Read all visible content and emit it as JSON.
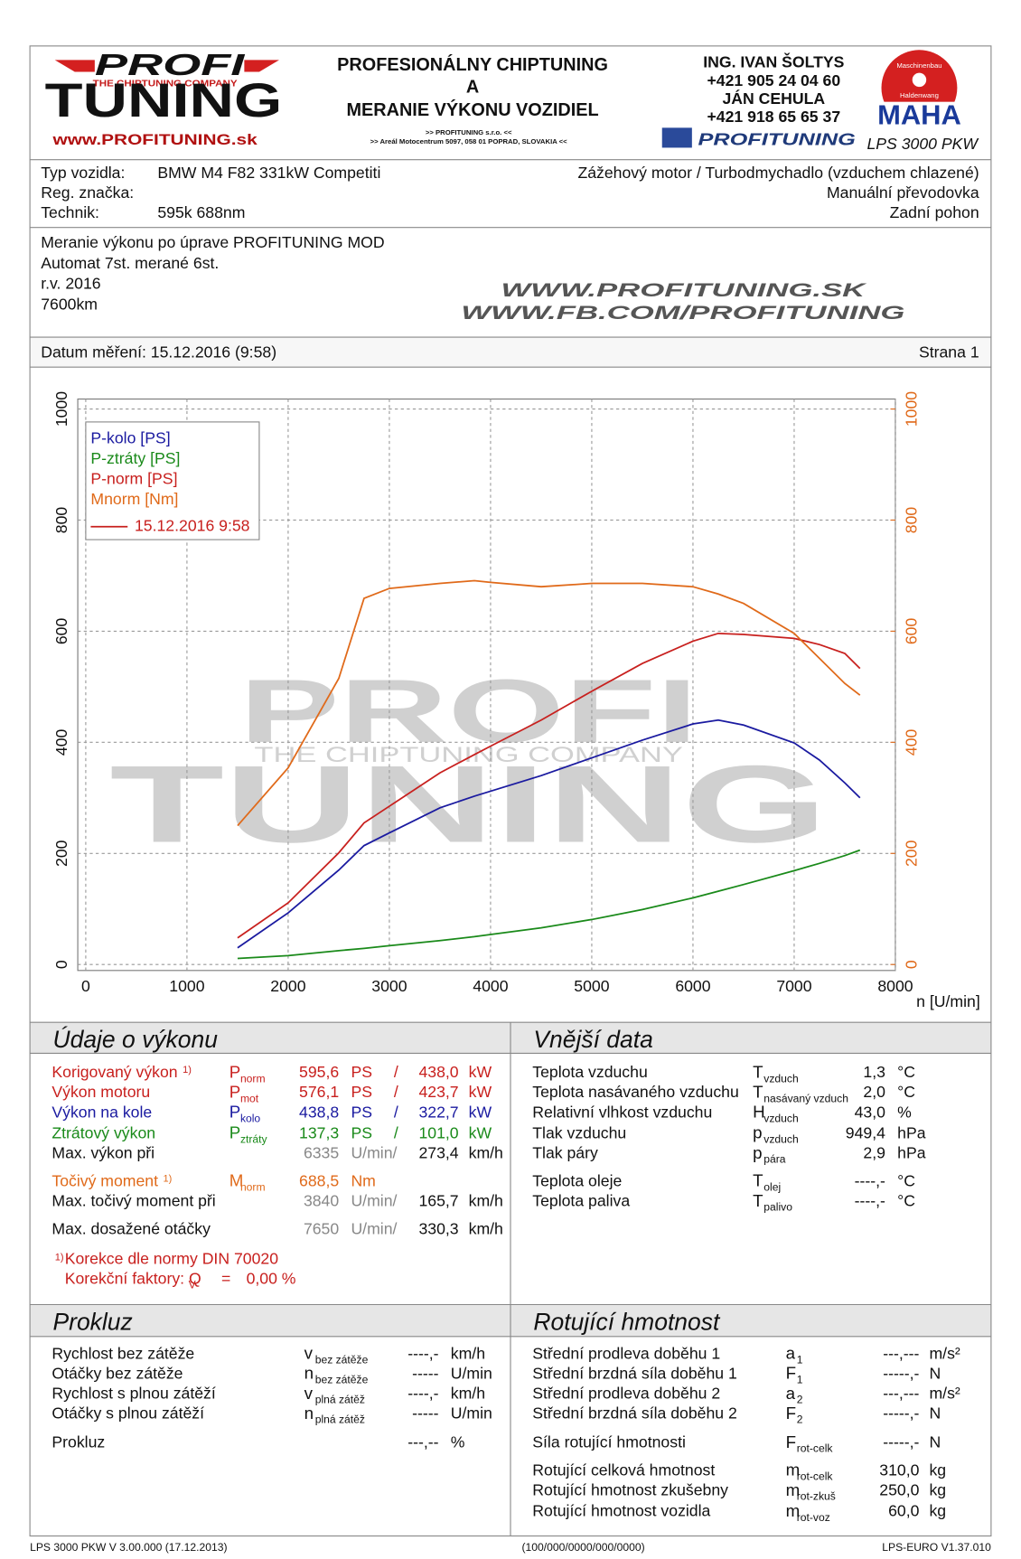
{
  "header": {
    "logo": {
      "profi": "PROFI",
      "tagline": "THE CHIPTUNING COMPANY",
      "tuning": "TUNING",
      "web": "www.PROFITUNING.sk"
    },
    "title": [
      "PROFESIONÁLNY CHIPTUNING",
      "A",
      "MERANIE VÝKONU VOZIDIEL"
    ],
    "address": [
      ">> PROFITUNING s.r.o. <<",
      ">> Areál Motocentrum 5097, 058 01 POPRAD, SLOVAKIA <<"
    ],
    "contacts": [
      "ING. IVAN ŠOLTYS",
      "+421 905 24 04 60",
      "JÁN CEHULA",
      "+421 918 65 65 37"
    ],
    "social": "PROFITUNING",
    "maha": {
      "ring1": "Maschinenbau",
      "ring2": "Haldenwang",
      "brand": "MAHA",
      "model": "LPS 3000 PKW"
    }
  },
  "vehicle": {
    "rows": [
      {
        "label": "Typ vozidla:",
        "value": "BMW M4 F82 331kW Competiti"
      },
      {
        "label": "Reg. značka:"
      },
      {
        "label": "Technik:",
        "value": "595k 688nm"
      }
    ],
    "right": [
      "Zážehový motor / Turbodmychadlo (vzduchem chlazené)",
      "Manuální převodovka",
      "Zadní pohon"
    ]
  },
  "notes": [
    "Meranie výkonu po úprave PROFITUNING MOD",
    "Automat 7st. merané 6st.",
    "r.v. 2016",
    "7600km"
  ],
  "websites": [
    "WWW.PROFITUNING.SK",
    "WWW.FB.COM/PROFITUNING"
  ],
  "date": "Datum měření: 15.12.2016 (9:58)",
  "page": "Strana 1",
  "chart_data": {
    "type": "line",
    "x_label": "n [U/min]",
    "x": [
      1500,
      2000,
      2500,
      2750,
      3000,
      3500,
      3840,
      4000,
      4500,
      5000,
      5500,
      6000,
      6250,
      6500,
      7000,
      7250,
      7500,
      7650
    ],
    "series": [
      {
        "name": "P-kolo [PS]",
        "color": "#1a1aa0",
        "values": [
          30,
          93,
          170,
          214,
          237,
          282,
          303,
          312,
          340,
          372,
          404,
          433,
          440,
          431,
          399,
          368,
          327,
          300
        ]
      },
      {
        "name": "P-ztráty [PS]",
        "color": "#1a8a1a",
        "values": [
          11,
          16,
          25,
          29,
          34,
          43,
          50,
          54,
          66,
          81,
          99,
          120,
          132,
          144,
          169,
          182,
          196,
          206
        ]
      },
      {
        "name": "P-norm [PS]",
        "color": "#c8201e",
        "values": [
          48,
          111,
          201,
          255,
          285,
          345,
          378,
          393,
          440,
          492,
          542,
          582,
          596,
          594,
          587,
          576,
          560,
          533
        ]
      },
      {
        "name": "Mnorm [Nm]",
        "color": "#e06a1a",
        "axis": "y2",
        "values": [
          250,
          354,
          515,
          659,
          677,
          686,
          691,
          688,
          680,
          686,
          686,
          680,
          667,
          650,
          596,
          551,
          506,
          485
        ]
      }
    ],
    "xlim": [
      0,
      8000
    ],
    "xticks": [
      0,
      1000,
      2000,
      3000,
      4000,
      5000,
      6000,
      7000,
      8000
    ],
    "ylim": [
      0,
      1000
    ],
    "yticks": [
      0,
      200,
      400,
      600,
      800,
      1000
    ],
    "y2lim": [
      0,
      1000
    ],
    "y2ticks": [
      0,
      200,
      400,
      600,
      800,
      1000
    ],
    "grid": true,
    "legend": {
      "position": "upper left",
      "run": "15.12.2016 9:58"
    },
    "watermark": [
      "PROFI",
      "THE CHIPTUNING COMPANY",
      "TUNING"
    ]
  },
  "performance": {
    "title": "Údaje o výkonu",
    "rows": [
      {
        "label": "Korigovaný výkon",
        "note": "1)",
        "sym": {
          "main": "P",
          "sub": "norm"
        },
        "cells": [
          "595,6",
          "PS",
          "/",
          "438,0",
          "kW"
        ],
        "color": "#c8201e"
      },
      {
        "label": "Výkon motoru",
        "sym": {
          "main": "P",
          "sub": "mot"
        },
        "cells": [
          "576,1",
          "PS",
          "/",
          "423,7",
          "kW"
        ],
        "color": "#c8201e"
      },
      {
        "label": "Výkon na kole",
        "sym": {
          "main": "P",
          "sub": "kolo"
        },
        "cells": [
          "438,8",
          "PS",
          "/",
          "322,7",
          "kW"
        ],
        "color": "#1a1aa0"
      },
      {
        "label": "Ztrátový výkon",
        "sym": {
          "main": "P",
          "sub": "ztráty"
        },
        "cells": [
          "137,3",
          "PS",
          "/",
          "101,0",
          "kW"
        ],
        "color": "#1a8a1a"
      },
      {
        "label": "Max. výkon při",
        "cells": [
          "6335",
          "U/min/",
          "273,4",
          "km/h"
        ]
      },
      {
        "label": "Točivý moment",
        "note": "1)",
        "sym": {
          "main": "M",
          "sub": "norm"
        },
        "cells": [
          "688,5",
          "Nm"
        ],
        "color": "#e06a1a"
      },
      {
        "label": "Max. točivý moment při",
        "cells": [
          "3840",
          "U/min/",
          "165,7",
          "km/h"
        ]
      },
      {
        "label": "Max. dosažené otáčky",
        "cells": [
          "7650",
          "U/min/",
          "330,3",
          "km/h"
        ]
      }
    ],
    "note": {
      "mark": "1)",
      "text": "Korekce dle normy DIN 70020"
    },
    "factor": {
      "label": "Korekční faktory: Q",
      "sub": "V",
      "eq": "=",
      "value": "0,00 %"
    }
  },
  "external": {
    "title": "Vnější data",
    "rows": [
      {
        "label": "Teplota vzduchu",
        "sym": {
          "main": "T",
          "sub": "vzduch"
        },
        "cells": [
          "1,3",
          "°C"
        ]
      },
      {
        "label": "Teplota nasávaného vzduchu",
        "sym": {
          "main": "T",
          "sub": "nasávaný vzduch"
        },
        "cells": [
          "2,0",
          "°C"
        ]
      },
      {
        "label": "Relativní vlhkost vzduchu",
        "sym": {
          "main": "H",
          "sub": "vzduch"
        },
        "cells": [
          "43,0",
          "%"
        ]
      },
      {
        "label": "Tlak vzduchu",
        "sym": {
          "main": "p",
          "sub": "vzduch"
        },
        "cells": [
          "949,4",
          "hPa"
        ]
      },
      {
        "label": "Tlak páry",
        "sym": {
          "main": "p",
          "sub": "pára"
        },
        "cells": [
          "2,9",
          "hPa"
        ]
      },
      {
        "label": "Teplota oleje",
        "sym": {
          "main": "T",
          "sub": "olej"
        },
        "cells": [
          "----,-",
          "°C"
        ]
      },
      {
        "label": "Teplota paliva",
        "sym": {
          "main": "T",
          "sub": "palivo"
        },
        "cells": [
          "----,-",
          "°C"
        ]
      }
    ]
  },
  "slip": {
    "title": "Prokluz",
    "rows": [
      {
        "label": "Rychlost bez zátěže",
        "sym": {
          "main": "v",
          "sub": "bez zátěže"
        },
        "cells": [
          "----,-",
          "km/h"
        ]
      },
      {
        "label": "Otáčky bez zátěže",
        "sym": {
          "main": "n",
          "sub": "bez zátěže"
        },
        "cells": [
          "-----",
          "U/min"
        ]
      },
      {
        "label": "Rychlost s plnou zátěží",
        "sym": {
          "main": "v",
          "sub": "plná zátěž"
        },
        "cells": [
          "----,-",
          "km/h"
        ]
      },
      {
        "label": "Otáčky s plnou zátěží",
        "sym": {
          "main": "n",
          "sub": "plná zátěž"
        },
        "cells": [
          "-----",
          "U/min"
        ]
      },
      {
        "label": "Prokluz",
        "cells": [
          "---,--",
          "%"
        ]
      }
    ]
  },
  "rotating": {
    "title": "Rotující hmotnost",
    "rows": [
      {
        "label": "Střední prodleva doběhu 1",
        "sym": {
          "main": "a",
          "sub": "1"
        },
        "cells": [
          "---,---",
          "m/s²"
        ]
      },
      {
        "label": "Střední brzdná síla doběhu 1",
        "sym": {
          "main": "F",
          "sub": "1"
        },
        "cells": [
          "-----,-",
          "N"
        ]
      },
      {
        "label": "Střední prodleva doběhu 2",
        "sym": {
          "main": "a",
          "sub": "2"
        },
        "cells": [
          "---,---",
          "m/s²"
        ]
      },
      {
        "label": "Střední brzdná síla doběhu 2",
        "sym": {
          "main": "F",
          "sub": "2"
        },
        "cells": [
          "-----,-",
          "N"
        ]
      },
      {
        "label": "Síla rotující hmotnosti",
        "sym": {
          "main": "F",
          "sub": "rot-celk"
        },
        "cells": [
          "-----,-",
          "N"
        ]
      },
      {
        "label": "Rotující celková hmotnost",
        "sym": {
          "main": "m",
          "sub": "rot-celk"
        },
        "cells": [
          "310,0",
          "kg"
        ]
      },
      {
        "label": "Rotující hmotnost zkušebny",
        "sym": {
          "main": "m",
          "sub": "rot-zkuš"
        },
        "cells": [
          "250,0",
          "kg"
        ]
      },
      {
        "label": "Rotující hmotnost vozidla",
        "sym": {
          "main": "m",
          "sub": "rot-voz"
        },
        "cells": [
          "60,0",
          "kg"
        ]
      }
    ]
  },
  "footer": [
    "LPS 3000 PKW V 3.00.000 (17.12.2013)",
    "(100/000/0000/000/0000)",
    "LPS-EURO V1.37.010"
  ]
}
